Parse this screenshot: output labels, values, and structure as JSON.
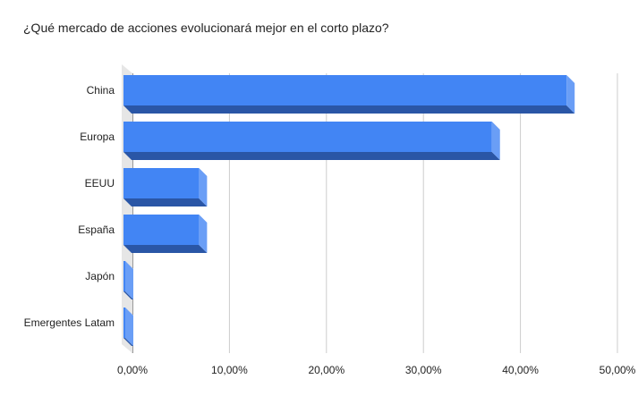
{
  "chart_data": {
    "type": "bar",
    "orientation": "horizontal",
    "title": "¿Qué mercado de acciones evolucionará mejor en el corto plazo?",
    "categories": [
      "China",
      "Europa",
      "EEUU",
      "España",
      "Japón",
      "Emergentes Latam"
    ],
    "series": [
      {
        "values": [
          45.5,
          37.8,
          7.6,
          7.6,
          0,
          0
        ]
      }
    ],
    "xlim": [
      0,
      50
    ],
    "x_ticks": [
      0,
      10,
      20,
      30,
      40,
      50
    ],
    "x_tick_labels": [
      "0,00%",
      "10,00%",
      "20,00%",
      "30,00%",
      "40,00%",
      "50,00%"
    ],
    "grid": true,
    "style": "3d",
    "colors": {
      "bar_front": "#4285f4",
      "bar_side": "#6a9ef6",
      "bar_bottom": "#2a56a6",
      "grid": "#cccccc",
      "floor": "#e6e6e6"
    }
  }
}
